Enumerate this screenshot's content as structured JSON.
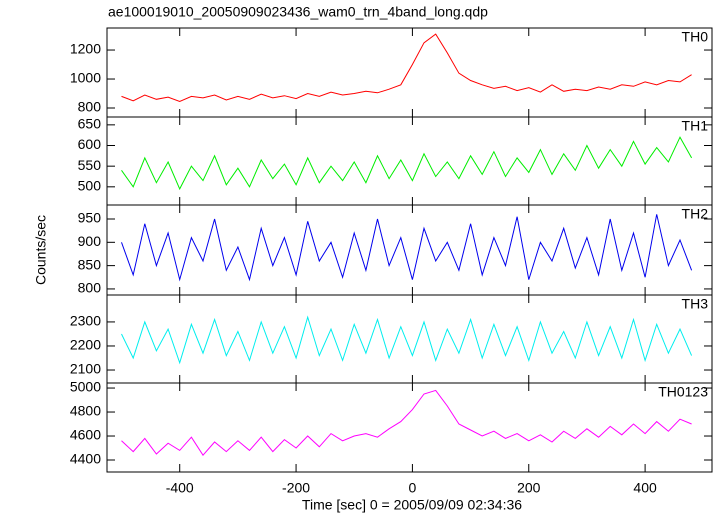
{
  "chart_data": {
    "type": "line",
    "title": "ae100019010_20050909023436_wam0_trn_4band_long.qdp",
    "xlabel": "Time [sec] 0 = 2005/09/09 02:34:36",
    "ylabel": "Counts/sec",
    "xlim": [
      -525,
      515
    ],
    "xticks": [
      -400,
      -200,
      0,
      200,
      400
    ],
    "x": [
      -500,
      -480,
      -460,
      -440,
      -420,
      -400,
      -380,
      -360,
      -340,
      -320,
      -300,
      -280,
      -260,
      -240,
      -220,
      -200,
      -180,
      -160,
      -140,
      -120,
      -100,
      -80,
      -60,
      -40,
      -20,
      0,
      20,
      40,
      60,
      80,
      100,
      120,
      140,
      160,
      180,
      200,
      220,
      240,
      260,
      280,
      300,
      320,
      340,
      360,
      380,
      400,
      420,
      440,
      460,
      480
    ],
    "series": [
      {
        "name": "TH0",
        "color": "#ff0000",
        "ylim": [
          738,
          1352
        ],
        "yticks": [
          800,
          1000,
          1200
        ],
        "values": [
          880,
          850,
          890,
          860,
          875,
          845,
          880,
          870,
          890,
          855,
          880,
          860,
          895,
          870,
          885,
          865,
          900,
          880,
          910,
          890,
          900,
          915,
          905,
          930,
          960,
          1100,
          1250,
          1310,
          1180,
          1040,
          990,
          960,
          935,
          950,
          920,
          940,
          910,
          960,
          915,
          930,
          920,
          945,
          930,
          960,
          950,
          980,
          960,
          990,
          980,
          1030
        ]
      },
      {
        "name": "TH1",
        "color": "#00ee00",
        "ylim": [
          456,
          669
        ],
        "yticks": [
          500,
          550,
          600,
          650
        ],
        "values": [
          540,
          500,
          570,
          510,
          560,
          495,
          550,
          515,
          575,
          505,
          545,
          500,
          565,
          520,
          555,
          505,
          570,
          510,
          550,
          515,
          560,
          510,
          575,
          520,
          565,
          515,
          580,
          525,
          560,
          520,
          575,
          530,
          585,
          525,
          570,
          535,
          590,
          530,
          580,
          540,
          600,
          545,
          590,
          550,
          610,
          555,
          595,
          560,
          620,
          570
        ]
      },
      {
        "name": "TH2",
        "color": "#0000ee",
        "ylim": [
          787,
          980
        ],
        "yticks": [
          800,
          850,
          900,
          950
        ],
        "values": [
          900,
          830,
          940,
          850,
          920,
          820,
          910,
          860,
          950,
          840,
          890,
          820,
          930,
          850,
          910,
          830,
          945,
          860,
          900,
          825,
          920,
          840,
          950,
          850,
          910,
          820,
          930,
          860,
          900,
          840,
          940,
          830,
          910,
          850,
          955,
          820,
          900,
          860,
          930,
          845,
          910,
          830,
          950,
          840,
          920,
          825,
          960,
          850,
          905,
          840
        ]
      },
      {
        "name": "TH3",
        "color": "#00eeee",
        "ylim": [
          2046,
          2412
        ],
        "yticks": [
          2100,
          2200,
          2300
        ],
        "values": [
          2250,
          2150,
          2300,
          2180,
          2270,
          2130,
          2290,
          2170,
          2310,
          2160,
          2260,
          2140,
          2300,
          2170,
          2280,
          2150,
          2320,
          2160,
          2270,
          2140,
          2290,
          2170,
          2310,
          2150,
          2280,
          2160,
          2300,
          2140,
          2270,
          2170,
          2310,
          2150,
          2290,
          2160,
          2280,
          2140,
          2300,
          2170,
          2260,
          2150,
          2300,
          2160,
          2280,
          2150,
          2310,
          2140,
          2290,
          2170,
          2270,
          2160
        ]
      },
      {
        "name": "TH0123",
        "color": "#ff00ff",
        "ylim": [
          4300,
          5042
        ],
        "yticks": [
          4400,
          4600,
          4800,
          5000
        ],
        "values": [
          4560,
          4470,
          4580,
          4450,
          4540,
          4480,
          4590,
          4440,
          4550,
          4470,
          4560,
          4480,
          4590,
          4470,
          4570,
          4500,
          4600,
          4510,
          4620,
          4560,
          4600,
          4620,
          4590,
          4660,
          4720,
          4820,
          4950,
          4980,
          4850,
          4700,
          4650,
          4600,
          4640,
          4580,
          4620,
          4560,
          4610,
          4550,
          4640,
          4580,
          4660,
          4590,
          4680,
          4610,
          4700,
          4620,
          4720,
          4640,
          4740,
          4700
        ]
      }
    ]
  }
}
